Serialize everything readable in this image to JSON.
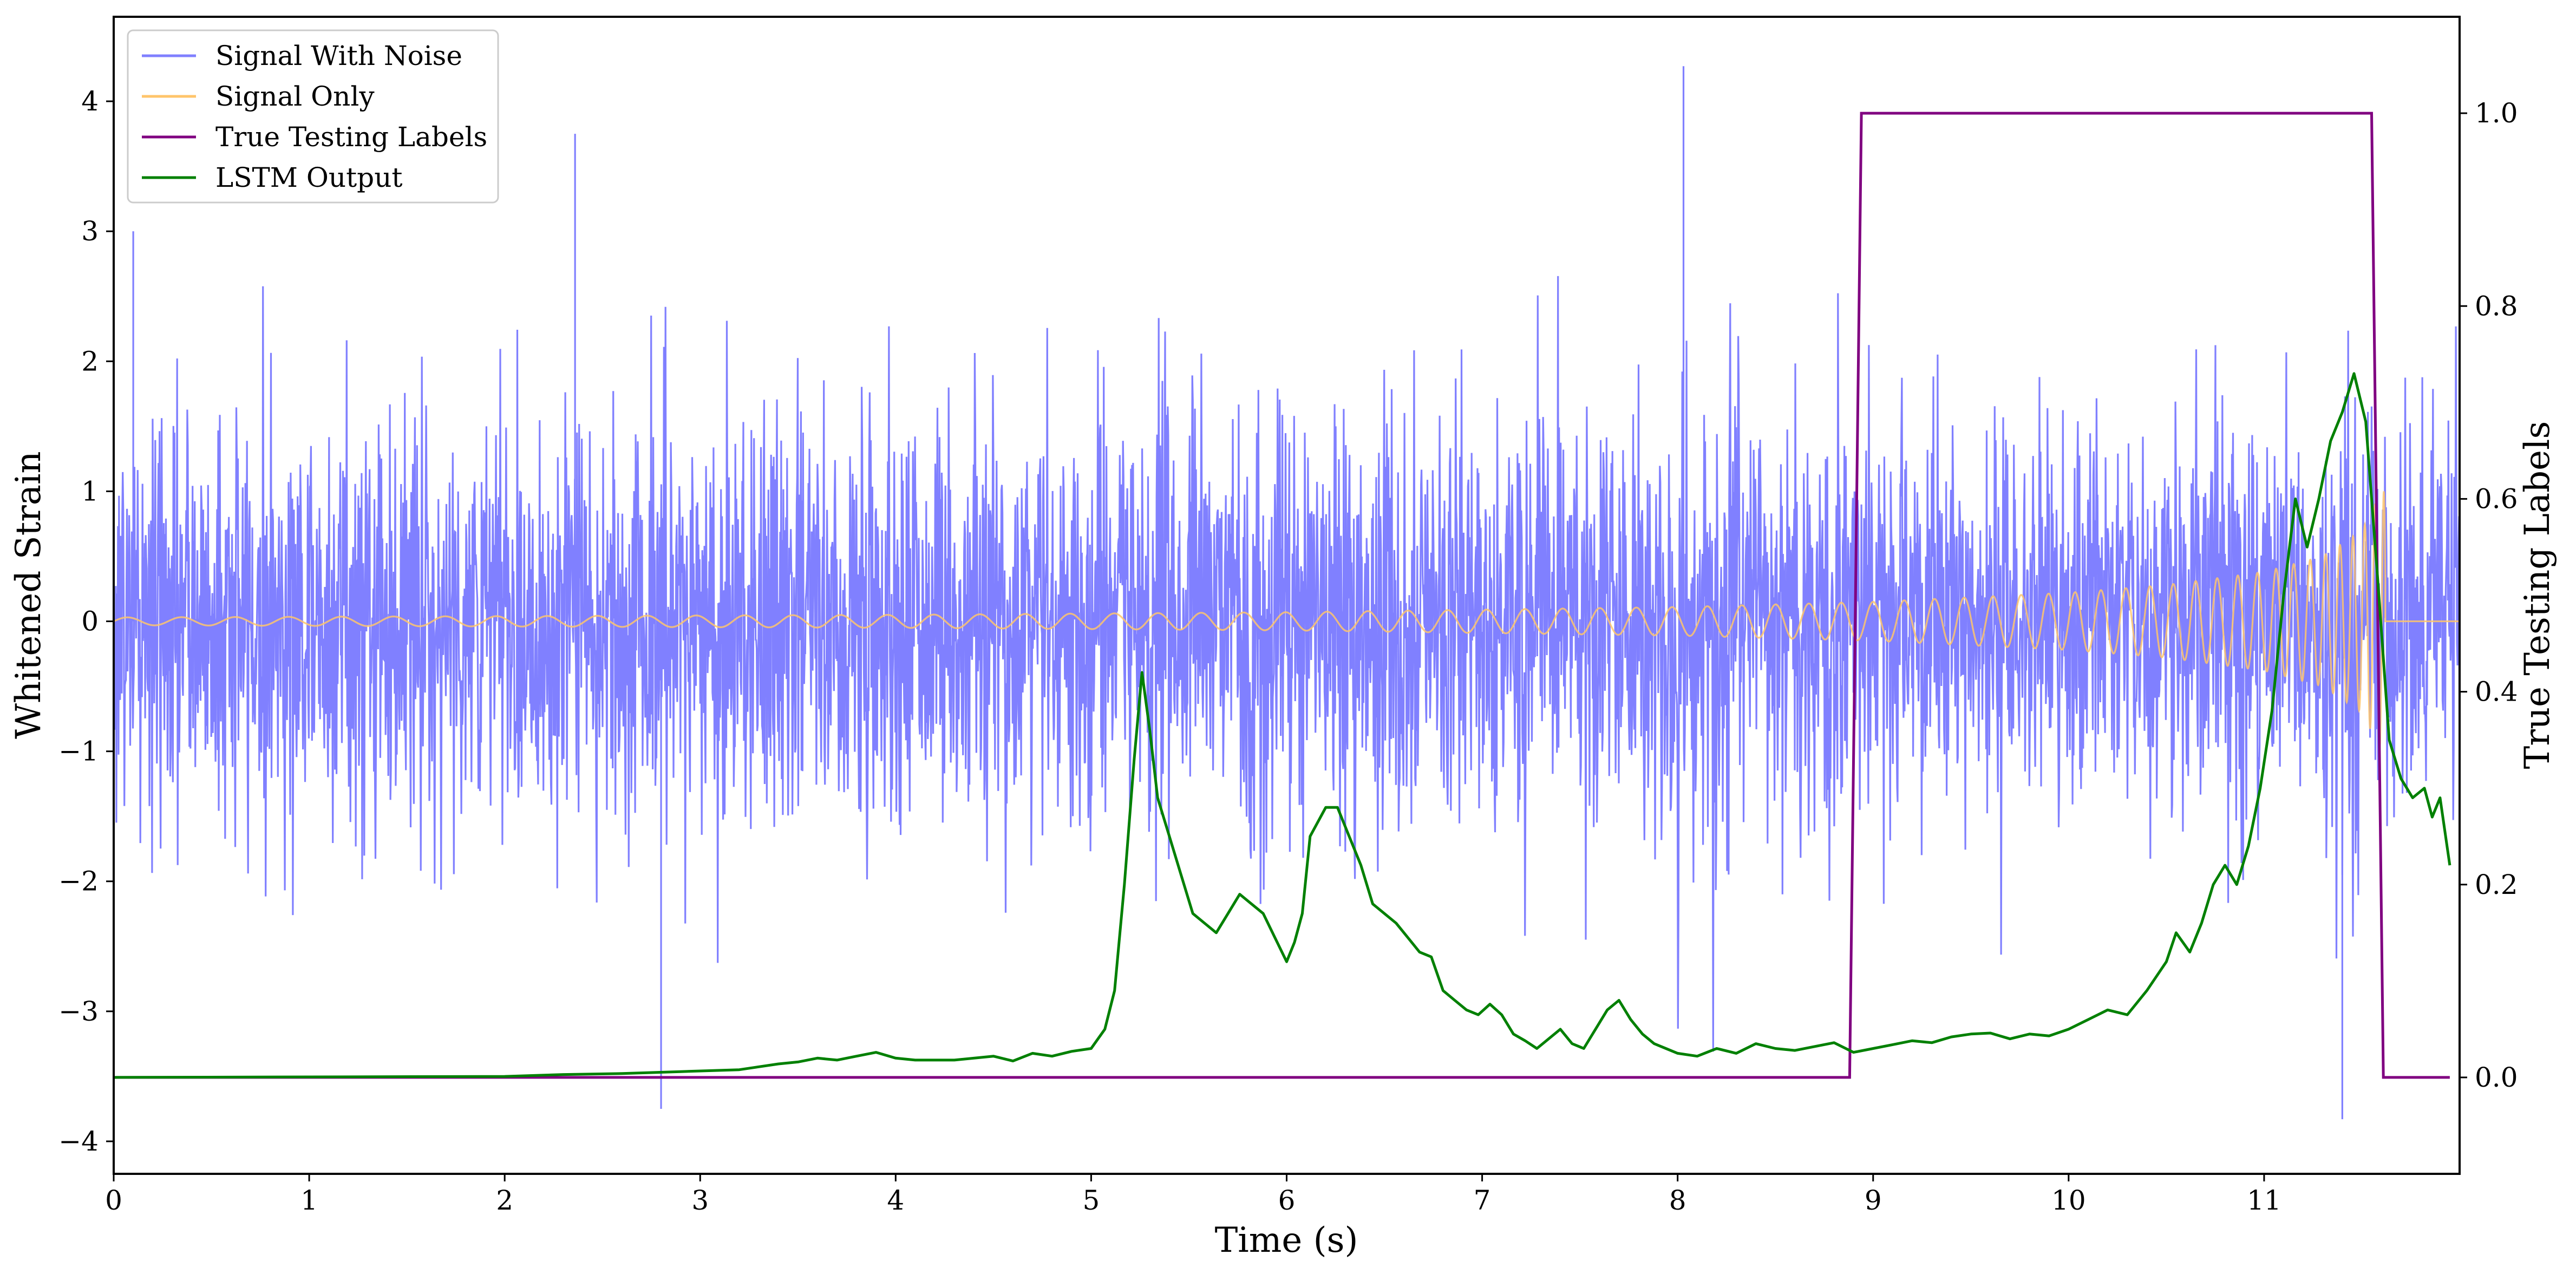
{
  "chart_data": {
    "type": "line",
    "title": "",
    "xlabel": "Time (s)",
    "ylabel_left": "Whitened Strain",
    "ylabel_right": "True Testing Labels",
    "xlim": [
      0,
      12.0
    ],
    "ylim_left": [
      -4.25,
      4.65
    ],
    "ylim_right": [
      -0.1,
      1.1
    ],
    "xticks": [
      0,
      1,
      2,
      3,
      4,
      5,
      6,
      7,
      8,
      9,
      10,
      11
    ],
    "xtick_labels": [
      "0",
      "1",
      "2",
      "3",
      "4",
      "5",
      "6",
      "7",
      "8",
      "9",
      "10",
      "11"
    ],
    "yticks_left": [
      -4,
      -3,
      -2,
      -1,
      0,
      1,
      2,
      3,
      4
    ],
    "ytick_labels_left": [
      "−4",
      "−3",
      "−2",
      "−1",
      "0",
      "1",
      "2",
      "3",
      "4"
    ],
    "yticks_right": [
      0.0,
      0.2,
      0.4,
      0.6,
      0.8,
      1.0
    ],
    "ytick_labels_right": [
      "0.0",
      "0.2",
      "0.4",
      "0.6",
      "0.8",
      "1.0"
    ],
    "grid": false,
    "legend_position": "top-left",
    "series": [
      {
        "name": "Signal With Noise",
        "color": "#8080ff",
        "axis": "left",
        "description": "dense white noise, standard deviation about 0.8, spanning roughly -3.8 to 4.3 across 0-12 s",
        "noise_std": 0.8,
        "notable_peaks": [
          [
            0.1,
            3.0
          ],
          [
            2.36,
            3.75
          ],
          [
            2.8,
            -3.75
          ],
          [
            8.03,
            4.27
          ],
          [
            11.4,
            -3.83
          ]
        ]
      },
      {
        "name": "Signal Only",
        "color": "#ffc56b",
        "axis": "left",
        "description": "chirp oscillating about 0 with amplitude growing from about 0.03 at t=0 to about 1.0 at t=11.6, then flat at 0 until 12 s",
        "envelope": {
          "x": [
            0,
            2,
            4,
            6,
            8,
            9,
            10,
            10.5,
            11,
            11.3,
            11.5,
            11.6
          ],
          "amplitude": [
            0.03,
            0.04,
            0.05,
            0.07,
            0.11,
            0.15,
            0.22,
            0.28,
            0.38,
            0.5,
            0.7,
            1.0
          ]
        },
        "end_time": 11.62
      },
      {
        "name": "True Testing Labels",
        "color": "#800080",
        "axis": "right",
        "x": [
          0,
          8.88,
          8.94,
          11.55,
          11.61,
          11.95
        ],
        "y": [
          0,
          0,
          1,
          1,
          0,
          0
        ]
      },
      {
        "name": "LSTM Output",
        "color": "#008000",
        "axis": "right",
        "x": [
          0,
          1.0,
          2.0,
          2.3,
          2.6,
          2.9,
          3.2,
          3.4,
          3.5,
          3.6,
          3.7,
          3.8,
          3.9,
          4.0,
          4.1,
          4.3,
          4.5,
          4.6,
          4.7,
          4.8,
          4.9,
          5.0,
          5.07,
          5.12,
          5.17,
          5.22,
          5.26,
          5.3,
          5.34,
          5.4,
          5.46,
          5.52,
          5.58,
          5.64,
          5.7,
          5.76,
          5.82,
          5.88,
          5.94,
          6.0,
          6.04,
          6.08,
          6.12,
          6.2,
          6.26,
          6.32,
          6.38,
          6.44,
          6.5,
          6.56,
          6.62,
          6.68,
          6.74,
          6.8,
          6.86,
          6.92,
          6.98,
          7.04,
          7.1,
          7.16,
          7.22,
          7.28,
          7.34,
          7.4,
          7.46,
          7.52,
          7.58,
          7.64,
          7.7,
          7.76,
          7.82,
          7.88,
          7.94,
          8.0,
          8.1,
          8.2,
          8.3,
          8.4,
          8.5,
          8.6,
          8.7,
          8.8,
          8.9,
          9.0,
          9.1,
          9.2,
          9.3,
          9.4,
          9.5,
          9.6,
          9.7,
          9.8,
          9.9,
          10.0,
          10.1,
          10.2,
          10.3,
          10.4,
          10.5,
          10.55,
          10.62,
          10.68,
          10.74,
          10.8,
          10.86,
          10.92,
          10.98,
          11.04,
          11.1,
          11.16,
          11.22,
          11.28,
          11.34,
          11.4,
          11.46,
          11.52,
          11.58,
          11.64,
          11.7,
          11.76,
          11.82,
          11.86,
          11.9,
          11.95
        ],
        "y": [
          0.0,
          0.0005,
          0.001,
          0.003,
          0.004,
          0.006,
          0.008,
          0.014,
          0.016,
          0.02,
          0.018,
          0.022,
          0.026,
          0.02,
          0.018,
          0.018,
          0.022,
          0.017,
          0.025,
          0.022,
          0.027,
          0.03,
          0.05,
          0.09,
          0.2,
          0.33,
          0.42,
          0.36,
          0.29,
          0.25,
          0.21,
          0.17,
          0.16,
          0.15,
          0.17,
          0.19,
          0.18,
          0.17,
          0.145,
          0.12,
          0.14,
          0.17,
          0.25,
          0.28,
          0.28,
          0.25,
          0.22,
          0.18,
          0.17,
          0.16,
          0.145,
          0.13,
          0.125,
          0.09,
          0.08,
          0.07,
          0.065,
          0.076,
          0.065,
          0.045,
          0.038,
          0.03,
          0.04,
          0.05,
          0.035,
          0.03,
          0.05,
          0.07,
          0.08,
          0.06,
          0.045,
          0.035,
          0.03,
          0.025,
          0.022,
          0.03,
          0.025,
          0.035,
          0.03,
          0.028,
          0.032,
          0.036,
          0.026,
          0.03,
          0.034,
          0.038,
          0.036,
          0.042,
          0.045,
          0.046,
          0.04,
          0.045,
          0.043,
          0.05,
          0.06,
          0.07,
          0.065,
          0.09,
          0.12,
          0.15,
          0.13,
          0.16,
          0.2,
          0.22,
          0.2,
          0.24,
          0.3,
          0.38,
          0.5,
          0.6,
          0.55,
          0.6,
          0.66,
          0.69,
          0.73,
          0.68,
          0.52,
          0.35,
          0.31,
          0.29,
          0.3,
          0.27,
          0.29,
          0.22
        ]
      }
    ]
  }
}
